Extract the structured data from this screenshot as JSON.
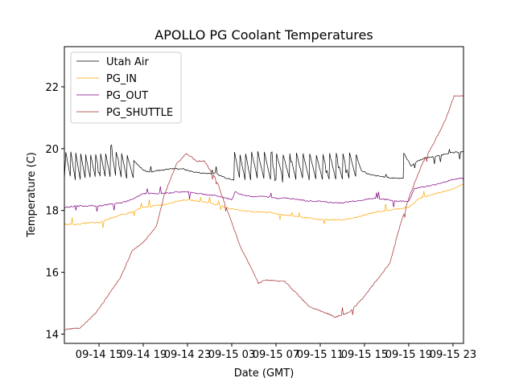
{
  "chart_data": {
    "type": "line",
    "title": "APOLLO PG Coolant Temperatures",
    "xlabel": "Date (GMT)",
    "ylabel": "Temperature (C)",
    "x_units": "hours since 09-14 12:00 GMT",
    "xlim": [
      -0.13,
      35.95
    ],
    "ylim": [
      13.7,
      23.3
    ],
    "grid": false,
    "legend_position": "top-left",
    "x_ticks": [
      {
        "value": 3,
        "label": "09-14 15"
      },
      {
        "value": 7,
        "label": "09-14 19"
      },
      {
        "value": 11,
        "label": "09-14 23"
      },
      {
        "value": 15,
        "label": "09-15 03"
      },
      {
        "value": 19,
        "label": "09-15 07"
      },
      {
        "value": 23,
        "label": "09-15 11"
      },
      {
        "value": 27,
        "label": "09-15 15"
      },
      {
        "value": 31,
        "label": "09-15 19"
      },
      {
        "value": 35,
        "label": "09-15 23"
      }
    ],
    "y_ticks": [
      {
        "value": 14,
        "label": "14"
      },
      {
        "value": 16,
        "label": "16"
      },
      {
        "value": 18,
        "label": "18"
      },
      {
        "value": 20,
        "label": "20"
      },
      {
        "value": 22,
        "label": "22"
      }
    ],
    "series": [
      {
        "name": "Utah Air",
        "color": "#000000",
        "x": [
          -0.13,
          0.0,
          0.4,
          0.45,
          0.85,
          0.9,
          1.3,
          1.35,
          1.75,
          1.8,
          2.2,
          2.25,
          2.65,
          2.7,
          3.1,
          3.15,
          3.55,
          3.6,
          4.0,
          4.05,
          4.5,
          4.55,
          5.0,
          5.05,
          5.5,
          5.55,
          6.1,
          6.15,
          7.0,
          7.5,
          8.5,
          9.5,
          10.5,
          11.5,
          12.5,
          13.5,
          14.5,
          15.2,
          15.25,
          15.7,
          15.75,
          16.2,
          16.25,
          16.7,
          16.8,
          17.3,
          17.35,
          17.9,
          17.95,
          18.5,
          18.55,
          19.0,
          19.05,
          19.6,
          19.65,
          20.2,
          20.25,
          20.8,
          20.85,
          21.4,
          21.45,
          22.0,
          22.05,
          22.6,
          22.65,
          23.2,
          23.25,
          23.8,
          23.85,
          24.4,
          24.45,
          25.0,
          25.05,
          25.6,
          25.65,
          26.2,
          26.25,
          26.7,
          27.5,
          28.5,
          29.5,
          30.5,
          30.55,
          31.2,
          31.8,
          32.5,
          33.5,
          34.5,
          35.95
        ],
        "y": [
          19.0,
          19.9,
          19.1,
          19.9,
          19.0,
          19.85,
          19.0,
          19.85,
          19.05,
          19.8,
          19.05,
          19.8,
          19.1,
          19.8,
          19.1,
          19.85,
          19.1,
          19.85,
          19.1,
          20.1,
          19.15,
          19.9,
          19.1,
          19.85,
          19.05,
          19.8,
          19.05,
          19.6,
          19.3,
          19.25,
          19.3,
          19.35,
          19.35,
          19.25,
          19.2,
          19.2,
          19.05,
          19.0,
          19.9,
          19.05,
          19.8,
          19.0,
          19.85,
          19.0,
          19.9,
          19.05,
          19.9,
          19.05,
          19.9,
          19.0,
          19.85,
          19.0,
          19.85,
          19.05,
          19.8,
          19.05,
          19.85,
          19.0,
          19.85,
          19.05,
          19.85,
          19.0,
          19.85,
          19.0,
          19.8,
          19.0,
          19.8,
          19.0,
          19.85,
          19.0,
          19.85,
          19.0,
          19.85,
          19.05,
          19.85,
          19.1,
          19.8,
          19.3,
          19.15,
          19.1,
          19.05,
          19.05,
          19.85,
          19.45,
          19.6,
          19.7,
          19.75,
          19.85,
          19.9
        ]
      },
      {
        "name": "PG_IN",
        "color": "#ffa500",
        "x": [
          -0.13,
          1.0,
          2.0,
          3.0,
          4.0,
          5.0,
          6.0,
          7.0,
          8.0,
          9.0,
          10.0,
          11.0,
          12.0,
          13.0,
          14.0,
          15.0,
          16.0,
          17.0,
          18.0,
          19.0,
          20.0,
          21.0,
          22.0,
          23.0,
          24.0,
          25.0,
          26.0,
          27.0,
          28.0,
          29.0,
          30.0,
          31.0,
          31.5,
          32.0,
          33.0,
          34.0,
          35.0,
          35.95
        ],
        "y": [
          17.55,
          17.55,
          17.6,
          17.6,
          17.75,
          17.85,
          17.95,
          18.1,
          18.15,
          18.2,
          18.3,
          18.35,
          18.3,
          18.25,
          18.15,
          18.05,
          18.0,
          17.95,
          17.95,
          17.9,
          17.85,
          17.8,
          17.75,
          17.7,
          17.7,
          17.7,
          17.75,
          17.85,
          17.95,
          18.0,
          18.05,
          18.1,
          18.25,
          18.4,
          18.5,
          18.6,
          18.7,
          18.85
        ]
      },
      {
        "name": "PG_OUT",
        "color": "#800080",
        "x": [
          -0.13,
          1.0,
          2.0,
          3.0,
          4.0,
          5.0,
          6.0,
          7.0,
          8.0,
          9.0,
          10.0,
          11.0,
          12.0,
          13.0,
          14.0,
          15.0,
          15.3,
          16.0,
          17.0,
          18.0,
          19.0,
          20.0,
          21.0,
          22.0,
          23.0,
          24.0,
          25.0,
          26.0,
          27.0,
          28.0,
          29.0,
          30.0,
          31.0,
          31.5,
          32.0,
          33.0,
          34.0,
          35.0,
          35.95
        ],
        "y": [
          18.1,
          18.15,
          18.15,
          18.15,
          18.2,
          18.25,
          18.35,
          18.55,
          18.55,
          18.55,
          18.6,
          18.6,
          18.55,
          18.5,
          18.45,
          18.35,
          18.6,
          18.5,
          18.45,
          18.45,
          18.4,
          18.4,
          18.35,
          18.3,
          18.3,
          18.25,
          18.25,
          18.3,
          18.35,
          18.4,
          18.35,
          18.3,
          18.3,
          18.7,
          18.75,
          18.8,
          18.9,
          19.0,
          19.05
        ]
      },
      {
        "name": "PG_SHUTTLE",
        "color": "#a52a2a",
        "x": [
          -0.13,
          1.3,
          2.75,
          4.9,
          6.0,
          7.1,
          8.2,
          8.9,
          10.0,
          10.9,
          11.8,
          12.5,
          13.6,
          14.7,
          15.8,
          16.7,
          17.4,
          18.0,
          19.8,
          20.9,
          22.0,
          23.4,
          24.4,
          25.6,
          26.7,
          27.8,
          29.3,
          30.2,
          31.1,
          32.2,
          33.3,
          34.4,
          35.1,
          35.95
        ],
        "y": [
          14.15,
          14.2,
          14.7,
          15.8,
          16.7,
          17.0,
          17.5,
          18.5,
          19.5,
          19.85,
          19.6,
          19.6,
          19.0,
          17.9,
          16.8,
          16.2,
          15.65,
          15.75,
          15.7,
          15.3,
          14.9,
          14.7,
          14.55,
          14.7,
          15.1,
          15.6,
          16.3,
          17.5,
          18.5,
          19.5,
          20.2,
          21.0,
          21.7,
          21.7
        ]
      }
    ]
  }
}
